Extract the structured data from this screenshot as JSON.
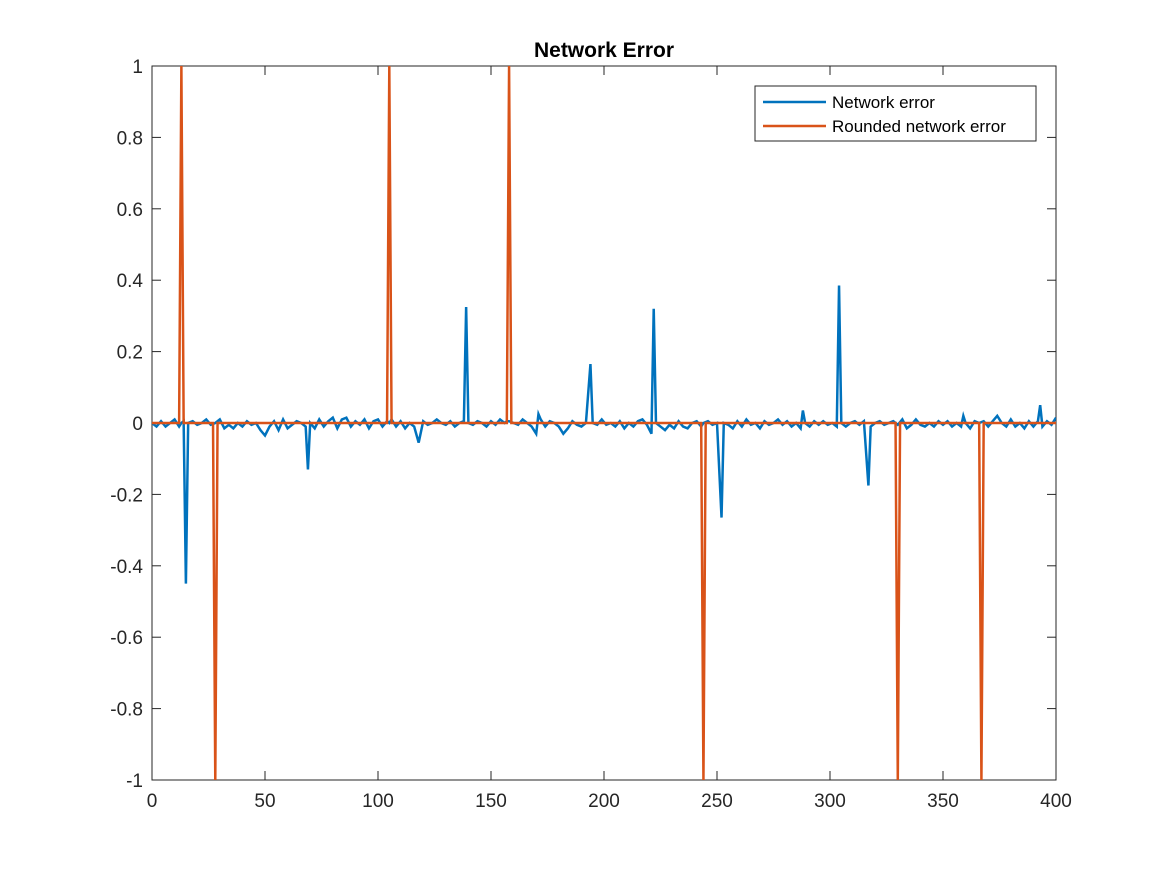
{
  "chart_data": {
    "type": "line",
    "title": "Network Error",
    "xlabel": "",
    "ylabel": "",
    "xlim": [
      0,
      400
    ],
    "ylim": [
      -1,
      1
    ],
    "xticks": [
      0,
      50,
      100,
      150,
      200,
      250,
      300,
      350,
      400
    ],
    "yticks": [
      -1,
      -0.8,
      -0.6,
      -0.4,
      -0.2,
      0,
      0.2,
      0.4,
      0.6,
      0.8,
      1
    ],
    "xtick_labels": [
      "0",
      "50",
      "100",
      "150",
      "200",
      "250",
      "300",
      "350",
      "400"
    ],
    "ytick_labels": [
      "-1",
      "-0.8",
      "-0.6",
      "-0.4",
      "-0.2",
      "0",
      "0.2",
      "0.4",
      "0.6",
      "0.8",
      "1"
    ],
    "grid": false,
    "legend_position": "top-right",
    "series": [
      {
        "name": "Network error",
        "color": "#0072BD",
        "points": [
          [
            0,
            0
          ],
          [
            2,
            -0.01
          ],
          [
            4,
            0.005
          ],
          [
            6,
            -0.01
          ],
          [
            8,
            0
          ],
          [
            10,
            0.01
          ],
          [
            12,
            -0.01
          ],
          [
            13,
            0
          ],
          [
            14,
            0.005
          ],
          [
            15,
            -0.45
          ],
          [
            16,
            0
          ],
          [
            18,
            0.005
          ],
          [
            20,
            -0.005
          ],
          [
            22,
            0
          ],
          [
            24,
            0.01
          ],
          [
            26,
            -0.005
          ],
          [
            28,
            0
          ],
          [
            30,
            0.01
          ],
          [
            32,
            -0.015
          ],
          [
            34,
            -0.005
          ],
          [
            36,
            -0.015
          ],
          [
            38,
            0
          ],
          [
            40,
            -0.01
          ],
          [
            42,
            0.005
          ],
          [
            44,
            -0.005
          ],
          [
            46,
            0
          ],
          [
            48,
            -0.02
          ],
          [
            50,
            -0.035
          ],
          [
            52,
            -0.01
          ],
          [
            54,
            0.005
          ],
          [
            56,
            -0.02
          ],
          [
            58,
            0.01
          ],
          [
            60,
            -0.015
          ],
          [
            62,
            -0.005
          ],
          [
            64,
            0.005
          ],
          [
            66,
            0
          ],
          [
            68,
            -0.01
          ],
          [
            69,
            -0.13
          ],
          [
            70,
            0
          ],
          [
            72,
            -0.015
          ],
          [
            74,
            0.01
          ],
          [
            76,
            -0.01
          ],
          [
            78,
            0.005
          ],
          [
            80,
            0.015
          ],
          [
            82,
            -0.015
          ],
          [
            84,
            0.01
          ],
          [
            86,
            0.015
          ],
          [
            88,
            -0.01
          ],
          [
            90,
            0.005
          ],
          [
            92,
            -0.005
          ],
          [
            94,
            0.01
          ],
          [
            96,
            -0.015
          ],
          [
            98,
            0.005
          ],
          [
            100,
            0.01
          ],
          [
            102,
            -0.01
          ],
          [
            104,
            0.005
          ],
          [
            105,
            0
          ],
          [
            106,
            0.01
          ],
          [
            108,
            -0.01
          ],
          [
            110,
            0.005
          ],
          [
            112,
            -0.015
          ],
          [
            114,
            0
          ],
          [
            116,
            -0.01
          ],
          [
            118,
            -0.055
          ],
          [
            120,
            0.005
          ],
          [
            122,
            -0.005
          ],
          [
            124,
            0
          ],
          [
            126,
            0.01
          ],
          [
            128,
            0
          ],
          [
            130,
            -0.005
          ],
          [
            132,
            0.005
          ],
          [
            134,
            -0.01
          ],
          [
            136,
            0
          ],
          [
            138,
            0.005
          ],
          [
            139,
            0.325
          ],
          [
            140,
            0
          ],
          [
            142,
            -0.005
          ],
          [
            144,
            0.005
          ],
          [
            146,
            0
          ],
          [
            148,
            -0.01
          ],
          [
            150,
            0.005
          ],
          [
            152,
            -0.005
          ],
          [
            154,
            0.01
          ],
          [
            156,
            0
          ],
          [
            157,
            0.005
          ],
          [
            158,
            0.005
          ],
          [
            160,
            0
          ],
          [
            162,
            -0.005
          ],
          [
            164,
            0.01
          ],
          [
            166,
            0
          ],
          [
            168,
            -0.01
          ],
          [
            170,
            -0.03
          ],
          [
            171,
            0.025
          ],
          [
            172,
            0.01
          ],
          [
            174,
            -0.01
          ],
          [
            176,
            0.005
          ],
          [
            178,
            0
          ],
          [
            180,
            -0.01
          ],
          [
            182,
            -0.03
          ],
          [
            184,
            -0.015
          ],
          [
            186,
            0.005
          ],
          [
            188,
            -0.005
          ],
          [
            190,
            -0.01
          ],
          [
            192,
            0
          ],
          [
            194,
            0.165
          ],
          [
            195,
            0
          ],
          [
            197,
            -0.005
          ],
          [
            199,
            0.01
          ],
          [
            201,
            -0.005
          ],
          [
            203,
            0
          ],
          [
            205,
            -0.01
          ],
          [
            207,
            0.005
          ],
          [
            209,
            -0.015
          ],
          [
            211,
            0
          ],
          [
            213,
            -0.01
          ],
          [
            215,
            0.005
          ],
          [
            217,
            0.01
          ],
          [
            219,
            -0.005
          ],
          [
            221,
            -0.03
          ],
          [
            222,
            0.32
          ],
          [
            223,
            0
          ],
          [
            225,
            -0.01
          ],
          [
            227,
            -0.02
          ],
          [
            229,
            -0.005
          ],
          [
            231,
            -0.015
          ],
          [
            233,
            0.005
          ],
          [
            235,
            -0.01
          ],
          [
            237,
            -0.015
          ],
          [
            239,
            0
          ],
          [
            241,
            0.005
          ],
          [
            243,
            -0.01
          ],
          [
            244,
            0
          ],
          [
            246,
            0.005
          ],
          [
            248,
            -0.005
          ],
          [
            250,
            0
          ],
          [
            252,
            -0.265
          ],
          [
            253,
            0
          ],
          [
            255,
            -0.005
          ],
          [
            257,
            -0.015
          ],
          [
            259,
            0.005
          ],
          [
            261,
            -0.01
          ],
          [
            263,
            0.01
          ],
          [
            265,
            -0.005
          ],
          [
            267,
            0
          ],
          [
            269,
            -0.015
          ],
          [
            271,
            0.005
          ],
          [
            273,
            -0.005
          ],
          [
            275,
            0
          ],
          [
            277,
            0.01
          ],
          [
            279,
            -0.005
          ],
          [
            281,
            0.005
          ],
          [
            283,
            -0.01
          ],
          [
            285,
            0
          ],
          [
            287,
            -0.015
          ],
          [
            288,
            0.035
          ],
          [
            289,
            0
          ],
          [
            291,
            -0.01
          ],
          [
            293,
            0.005
          ],
          [
            295,
            -0.005
          ],
          [
            297,
            0.005
          ],
          [
            299,
            -0.005
          ],
          [
            301,
            0
          ],
          [
            303,
            -0.01
          ],
          [
            304,
            0.385
          ],
          [
            305,
            0
          ],
          [
            307,
            -0.01
          ],
          [
            309,
            0
          ],
          [
            311,
            0.005
          ],
          [
            313,
            -0.005
          ],
          [
            315,
            0.005
          ],
          [
            317,
            -0.175
          ],
          [
            318,
            -0.01
          ],
          [
            320,
            0
          ],
          [
            322,
            0.005
          ],
          [
            324,
            -0.005
          ],
          [
            326,
            0
          ],
          [
            328,
            0.005
          ],
          [
            330,
            -0.005
          ],
          [
            332,
            0.01
          ],
          [
            334,
            -0.015
          ],
          [
            336,
            -0.005
          ],
          [
            338,
            0.01
          ],
          [
            340,
            -0.005
          ],
          [
            342,
            -0.01
          ],
          [
            344,
            0
          ],
          [
            346,
            -0.01
          ],
          [
            348,
            0.005
          ],
          [
            350,
            -0.005
          ],
          [
            352,
            0.005
          ],
          [
            354,
            -0.01
          ],
          [
            356,
            0
          ],
          [
            358,
            -0.01
          ],
          [
            359,
            0.02
          ],
          [
            360,
            0
          ],
          [
            362,
            -0.015
          ],
          [
            364,
            0.005
          ],
          [
            366,
            0
          ],
          [
            368,
            0.005
          ],
          [
            370,
            -0.01
          ],
          [
            372,
            0.005
          ],
          [
            374,
            0.02
          ],
          [
            376,
            0
          ],
          [
            378,
            -0.01
          ],
          [
            380,
            0.01
          ],
          [
            382,
            -0.01
          ],
          [
            384,
            0
          ],
          [
            386,
            -0.015
          ],
          [
            388,
            0.005
          ],
          [
            390,
            -0.01
          ],
          [
            392,
            0.005
          ],
          [
            393,
            0.05
          ],
          [
            394,
            -0.01
          ],
          [
            396,
            0.005
          ],
          [
            398,
            -0.005
          ],
          [
            400,
            0.015
          ]
        ]
      },
      {
        "name": "Rounded network error",
        "color": "#D95319",
        "points": [
          [
            0,
            0
          ],
          [
            12,
            0
          ],
          [
            13,
            1
          ],
          [
            14,
            0
          ],
          [
            27,
            0
          ],
          [
            28,
            -1
          ],
          [
            29,
            0
          ],
          [
            104,
            0
          ],
          [
            105,
            1
          ],
          [
            106,
            0
          ],
          [
            157,
            0
          ],
          [
            158,
            1
          ],
          [
            159,
            0
          ],
          [
            243,
            0
          ],
          [
            244,
            -1
          ],
          [
            245,
            0
          ],
          [
            329,
            0
          ],
          [
            330,
            -1
          ],
          [
            331,
            0
          ],
          [
            366,
            0
          ],
          [
            367,
            -1
          ],
          [
            368,
            0
          ],
          [
            400,
            0
          ]
        ]
      }
    ]
  }
}
